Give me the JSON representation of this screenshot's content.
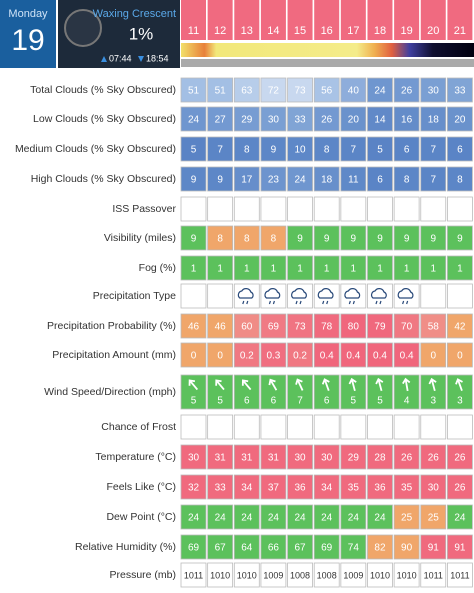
{
  "header": {
    "day": "Monday",
    "date": "19",
    "moon_phase": "Waxing Crescent",
    "moon_illumination": "1%",
    "sunrise": "07:44",
    "sunset": "18:54"
  },
  "hours": [
    "11",
    "12",
    "13",
    "14",
    "15",
    "16",
    "17",
    "18",
    "19",
    "20",
    "21"
  ],
  "rows": [
    {
      "label": "Total Clouds (% Sky Obscured)",
      "values": [
        "51",
        "51",
        "63",
        "72",
        "73",
        "56",
        "40",
        "24",
        "26",
        "30",
        "33"
      ],
      "colors": [
        "#a3bfe4",
        "#a3bfe4",
        "#b7cdea",
        "#c8d8ef",
        "#c8d8ef",
        "#a9c3e6",
        "#8eaddb",
        "#6f96cf",
        "#7399d1",
        "#7a9fd3",
        "#80a4d5"
      ]
    },
    {
      "label": "Low Clouds (% Sky Obscured)",
      "values": [
        "24",
        "27",
        "29",
        "30",
        "33",
        "26",
        "20",
        "14",
        "16",
        "18",
        "20"
      ],
      "colors": [
        "#6f96cf",
        "#7399d1",
        "#779cd2",
        "#7a9fd3",
        "#80a4d5",
        "#7399d1",
        "#6a92cc",
        "#6189c8",
        "#648cc9",
        "#678fcb",
        "#6a92cc"
      ]
    },
    {
      "label": "Medium Clouds (% Sky Obscured)",
      "values": [
        "5",
        "7",
        "8",
        "9",
        "10",
        "8",
        "7",
        "5",
        "6",
        "7",
        "6"
      ],
      "colors": [
        "#5a83c5",
        "#5b85c6",
        "#5c86c7",
        "#5d87c7",
        "#5e88c8",
        "#5c86c7",
        "#5b85c6",
        "#5a83c5",
        "#5a84c6",
        "#5b85c6",
        "#5a84c6"
      ]
    },
    {
      "label": "High Clouds (% Sky Obscured)",
      "values": [
        "9",
        "9",
        "17",
        "23",
        "24",
        "18",
        "11",
        "6",
        "8",
        "7",
        "8"
      ],
      "colors": [
        "#5d87c7",
        "#5d87c7",
        "#668ecb",
        "#6d94ce",
        "#6f96cf",
        "#678fcb",
        "#5f89c8",
        "#5a84c6",
        "#5c86c7",
        "#5b85c6",
        "#5c86c7"
      ]
    },
    {
      "label": "ISS Passover"
    },
    {
      "label": "Visibility (miles)",
      "values": [
        "9",
        "8",
        "8",
        "8",
        "9",
        "9",
        "9",
        "9",
        "9",
        "9",
        "9"
      ],
      "colors": [
        "#5cc15c",
        "#f0a66a",
        "#f0a66a",
        "#f0a66a",
        "#5cc15c",
        "#5cc15c",
        "#5cc15c",
        "#5cc15c",
        "#5cc15c",
        "#5cc15c",
        "#5cc15c"
      ]
    },
    {
      "label": "Fog (%)",
      "values": [
        "1",
        "1",
        "1",
        "1",
        "1",
        "1",
        "1",
        "1",
        "1",
        "1",
        "1"
      ],
      "colors": [
        "#5cc15c",
        "#5cc15c",
        "#5cc15c",
        "#5cc15c",
        "#5cc15c",
        "#5cc15c",
        "#5cc15c",
        "#5cc15c",
        "#5cc15c",
        "#5cc15c",
        "#5cc15c"
      ]
    },
    {
      "label": "Precipitation Type"
    },
    {
      "label": "Precipitation Probability (%)",
      "values": [
        "46",
        "46",
        "60",
        "69",
        "73",
        "78",
        "80",
        "79",
        "70",
        "58",
        "42"
      ],
      "colors": [
        "#f0a66a",
        "#f0a66a",
        "#f08c86",
        "#f07a84",
        "#f07482",
        "#f06a7e",
        "#f0667c",
        "#f0687d",
        "#f07882",
        "#f08e87",
        "#f0a66a"
      ]
    },
    {
      "label": "Precipitation Amount (mm)",
      "values": [
        "0",
        "0",
        "0.2",
        "0.3",
        "0.2",
        "0.4",
        "0.4",
        "0.4",
        "0.4",
        "0",
        "0"
      ],
      "colors": [
        "#f0a66a",
        "#f0a66a",
        "#f07882",
        "#f06e80",
        "#f07882",
        "#f0667c",
        "#f0667c",
        "#f0667c",
        "#f0667c",
        "#f0a66a",
        "#f0a66a"
      ]
    },
    {
      "label": "Wind Speed/Direction (mph)",
      "values": [
        "5",
        "5",
        "6",
        "6",
        "7",
        "6",
        "5",
        "5",
        "4",
        "3",
        "3"
      ],
      "colors": [
        "#5cc15c",
        "#5cc15c",
        "#5cc15c",
        "#5cc15c",
        "#5cc15c",
        "#5cc15c",
        "#5cc15c",
        "#5cc15c",
        "#5cc15c",
        "#5cc15c",
        "#5cc15c"
      ]
    },
    {
      "label": "Chance of Frost"
    },
    {
      "label": "Temperature (°C)",
      "values": [
        "30",
        "31",
        "31",
        "31",
        "30",
        "30",
        "29",
        "28",
        "26",
        "26",
        "26"
      ],
      "colors": [
        "#f06a7e",
        "#f06a7e",
        "#f06a7e",
        "#f06a7e",
        "#f06a7e",
        "#f06a7e",
        "#f06a7e",
        "#f06a7e",
        "#f06a7e",
        "#f06a7e",
        "#f06a7e"
      ]
    },
    {
      "label": "Feels Like (°C)",
      "values": [
        "32",
        "33",
        "34",
        "37",
        "36",
        "34",
        "35",
        "36",
        "35",
        "30",
        "26"
      ],
      "colors": [
        "#f06a7e",
        "#f06a7e",
        "#f06a7e",
        "#f06a7e",
        "#f06a7e",
        "#f06a7e",
        "#f06a7e",
        "#f06a7e",
        "#f06a7e",
        "#f06a7e",
        "#f06a7e"
      ]
    },
    {
      "label": "Dew Point (°C)",
      "values": [
        "24",
        "24",
        "24",
        "24",
        "24",
        "24",
        "24",
        "24",
        "25",
        "25",
        "24"
      ],
      "colors": [
        "#5cc15c",
        "#5cc15c",
        "#5cc15c",
        "#5cc15c",
        "#5cc15c",
        "#5cc15c",
        "#5cc15c",
        "#5cc15c",
        "#f0a66a",
        "#f0a66a",
        "#5cc15c"
      ]
    },
    {
      "label": "Relative Humidity (%)",
      "values": [
        "69",
        "67",
        "64",
        "66",
        "67",
        "69",
        "74",
        "82",
        "90",
        "91",
        "91"
      ],
      "colors": [
        "#5cc15c",
        "#5cc15c",
        "#5cc15c",
        "#5cc15c",
        "#5cc15c",
        "#5cc15c",
        "#5cc15c",
        "#f0a66a",
        "#f0a66a",
        "#f06a7e",
        "#f06a7e"
      ]
    },
    {
      "label": "Pressure (mb)",
      "values": [
        "1011",
        "1010",
        "1010",
        "1009",
        "1008",
        "1008",
        "1009",
        "1010",
        "1010",
        "1011",
        "1011"
      ],
      "colors": [
        "#ffffff",
        "#ffffff",
        "#ffffff",
        "#ffffff",
        "#ffffff",
        "#ffffff",
        "#ffffff",
        "#ffffff",
        "#ffffff",
        "#ffffff",
        "#ffffff"
      ]
    }
  ]
}
